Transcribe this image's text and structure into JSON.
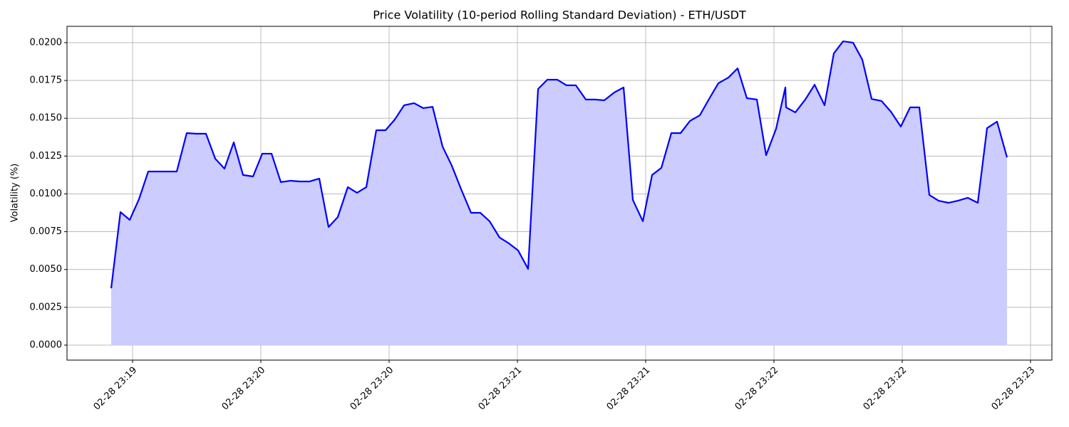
{
  "chart_data": {
    "type": "area",
    "title": "Price Volatility (10-period Rolling Standard Deviation) - ETH/USDT",
    "y_label": "Volatility (%)",
    "grid": true,
    "fill_color": "#ccccff",
    "x": [
      19.4167,
      19.4528,
      19.4889,
      19.525,
      19.5611,
      19.5972,
      19.6361,
      19.6722,
      19.7111,
      19.7472,
      19.7861,
      19.8222,
      19.8583,
      19.8944,
      19.9306,
      19.9694,
      20.0056,
      20.0417,
      20.0778,
      20.1167,
      20.1528,
      20.1889,
      20.2278,
      20.2639,
      20.3,
      20.3389,
      20.375,
      20.4111,
      20.45,
      20.4861,
      20.5222,
      20.5583,
      20.5972,
      20.6333,
      20.6694,
      20.7083,
      20.7444,
      20.7806,
      20.8194,
      20.8556,
      20.8917,
      20.9306,
      20.9667,
      21.0028,
      21.0417,
      21.0806,
      21.1167,
      21.1556,
      21.1917,
      21.2278,
      21.2667,
      21.3028,
      21.3389,
      21.3778,
      21.4139,
      21.45,
      21.4889,
      21.525,
      21.5611,
      21.6,
      21.6361,
      21.6722,
      21.7111,
      21.7472,
      21.7833,
      21.8222,
      21.8583,
      21.8944,
      21.9333,
      21.9694,
      22.0083,
      22.0444,
      22.0472,
      22.0833,
      22.1222,
      22.1583,
      22.1972,
      22.2333,
      22.2694,
      22.3083,
      22.3444,
      22.3806,
      22.4194,
      22.4556,
      22.4944,
      22.5306,
      22.5667,
      22.6056,
      22.6417,
      22.6806,
      22.7167,
      22.7556,
      22.7944,
      22.8306,
      22.8694,
      22.9083
    ],
    "series": [
      {
        "name": "Volatility",
        "color": "#0000ff",
        "values": [
          0.00376,
          0.0088,
          0.00828,
          0.00965,
          0.01148,
          0.01148,
          0.01148,
          0.01148,
          0.01402,
          0.01398,
          0.01398,
          0.01233,
          0.01167,
          0.01341,
          0.01125,
          0.01115,
          0.01266,
          0.01266,
          0.01078,
          0.01087,
          0.01082,
          0.01082,
          0.01101,
          0.00781,
          0.00847,
          0.01045,
          0.01007,
          0.01045,
          0.01421,
          0.01421,
          0.01492,
          0.01586,
          0.016,
          0.01567,
          0.01576,
          0.01313,
          0.01186,
          0.01031,
          0.00875,
          0.00875,
          0.00819,
          0.00711,
          0.00673,
          0.00626,
          0.00504,
          0.01694,
          0.01755,
          0.01755,
          0.01718,
          0.01718,
          0.01624,
          0.01624,
          0.01619,
          0.01671,
          0.01704,
          0.0096,
          0.00819,
          0.01125,
          0.01172,
          0.01402,
          0.01402,
          0.01482,
          0.0152,
          0.01628,
          0.01732,
          0.01769,
          0.0183,
          0.01633,
          0.01624,
          0.01256,
          0.01431,
          0.01704,
          0.01572,
          0.01539,
          0.01624,
          0.01722,
          0.01586,
          0.01929,
          0.02009,
          0.02,
          0.01887,
          0.01628,
          0.01614,
          0.01544,
          0.01445,
          0.01572,
          0.01572,
          0.00993,
          0.00955,
          0.00941,
          0.00955,
          0.00974,
          0.00941,
          0.01435,
          0.01478,
          0.01242
        ]
      }
    ],
    "xlim": [
      19.2444,
      23.0833
    ],
    "xticks": [
      {
        "value": 19.5,
        "label": "02-28 23:19"
      },
      {
        "value": 20.0,
        "label": "02-28 23:20"
      },
      {
        "value": 20.5,
        "label": "02-28 23:20"
      },
      {
        "value": 21.0,
        "label": "02-28 23:21"
      },
      {
        "value": 21.5,
        "label": "02-28 23:21"
      },
      {
        "value": 22.0,
        "label": "02-28 23:22"
      },
      {
        "value": 22.5,
        "label": "02-28 23:22"
      },
      {
        "value": 23.0,
        "label": "02-28 23:23"
      }
    ],
    "ylim": [
      -0.00099,
      0.02108
    ],
    "yticks": [
      {
        "value": 0,
        "label": "0.0000"
      },
      {
        "value": 0.0025,
        "label": "0.0025"
      },
      {
        "value": 0.005,
        "label": "0.0050"
      },
      {
        "value": 0.0075,
        "label": "0.0075"
      },
      {
        "value": 0.01,
        "label": "0.0100"
      },
      {
        "value": 0.0125,
        "label": "0.0125"
      },
      {
        "value": 0.015,
        "label": "0.0150"
      },
      {
        "value": 0.0175,
        "label": "0.0175"
      },
      {
        "value": 0.02,
        "label": "0.0200"
      }
    ]
  }
}
